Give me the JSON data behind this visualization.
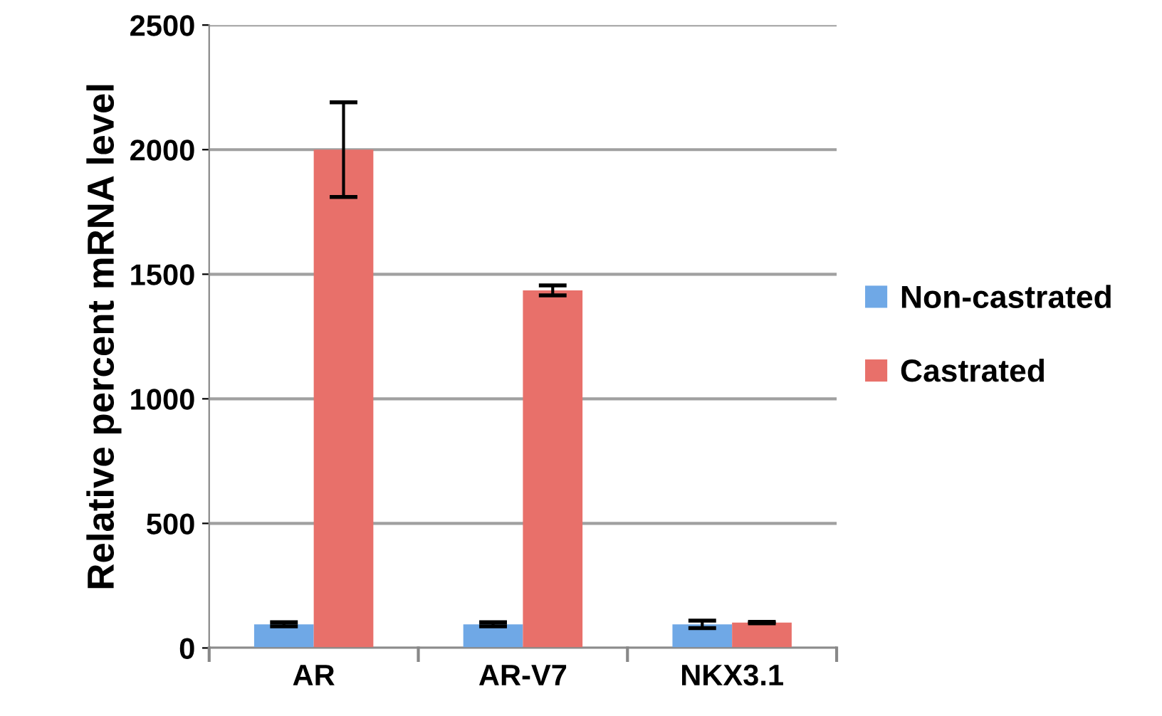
{
  "chart_data": {
    "type": "bar",
    "ylabel": "Relative percent mRNA level",
    "categories": [
      "AR",
      "AR-V7",
      "NKX3.1"
    ],
    "series": [
      {
        "name": "Non-castrated",
        "color": "#6fa8e6",
        "values": [
          95,
          95,
          95
        ],
        "errors": [
          8,
          8,
          15
        ]
      },
      {
        "name": "Castrated",
        "color": "#e8706a",
        "values": [
          2000,
          1435,
          102
        ],
        "errors": [
          190,
          20,
          3
        ]
      }
    ],
    "ylim": [
      0,
      2500
    ],
    "yticks": [
      0,
      500,
      1000,
      1500,
      2000,
      2500
    ],
    "grid": "y",
    "legend": "right"
  }
}
